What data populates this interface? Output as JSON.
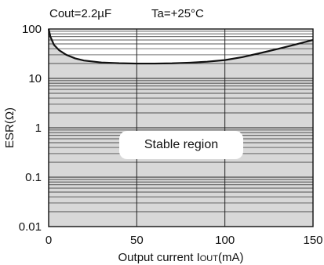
{
  "chart_data": {
    "type": "line",
    "header": {
      "left": "Cout=2.2µF",
      "right": "Ta=+25°C"
    },
    "xlabel": "Output current I",
    "xlabel_sub": "OUT",
    "xlabel_unit": "(mA)",
    "ylabel": "ESR(Ω)",
    "x_ticks": [
      "0",
      "50",
      "100",
      "150"
    ],
    "y_ticks": [
      "0.01",
      "0.1",
      "1",
      "10",
      "100"
    ],
    "xlim": [
      0,
      150
    ],
    "ylim": [
      0.01,
      100
    ],
    "y_scale": "log",
    "grid": true,
    "region_label": "Stable region",
    "series": [
      {
        "x": [
          0,
          1,
          3,
          6,
          10,
          15,
          20,
          30,
          40,
          50,
          60,
          70,
          80,
          90,
          100,
          110,
          120,
          130,
          140,
          150
        ],
        "y": [
          100,
          70,
          48,
          37,
          30,
          25.5,
          23,
          21,
          20.3,
          20,
          20,
          20.2,
          20.8,
          21.8,
          23.5,
          27,
          32.5,
          39.5,
          48.5,
          60
        ]
      }
    ],
    "fill_between": "series_and_ymin",
    "colors": {
      "fill": "#d8d8d8",
      "line": "#111111",
      "grid": "#222222",
      "label_box": "#ffffff"
    }
  }
}
